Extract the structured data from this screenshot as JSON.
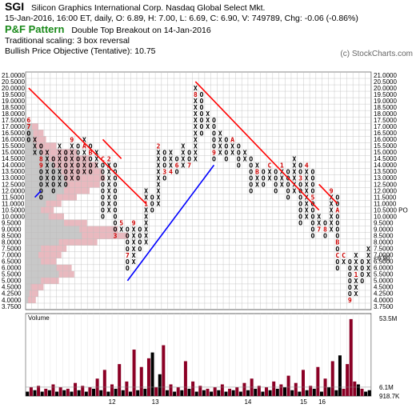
{
  "header": {
    "ticker": "SGI",
    "company": "Silicon Graphics International Corp.  Nasdaq Global Select Mkt.",
    "quote": "15-Jan-2016, 16:00 ET, daily, O: 6.89, H: 7.00, L: 6.69, C: 6.90, V: 749789, Chg: -0.06 (-0.86%)",
    "pf_title": "P&F Pattern",
    "pattern": "Double Top Breakout on 14-Jan-2016",
    "scaling": "Traditional scaling: 3 box reversal",
    "objective": "Bullish Price Objective (Tentative): 10.75",
    "copyright": "(c) StockCharts.com"
  },
  "colors": {
    "x_mark": "#000000",
    "o_mark": "#000000",
    "month_mark": "#cc0000",
    "trend_bear": "#ff0000",
    "trend_bull": "#0000ff",
    "price_label": "#cc0000",
    "objective_label": "#009900",
    "volume_up": "#000000",
    "volume_down": "#8b0025",
    "vbp": "#e9b9bf",
    "vbp_gray": "#c8c8c8"
  },
  "chart_data": {
    "type": "point-and-figure",
    "box_size": 0.5,
    "reversal": 3,
    "price_levels": [
      "21.0000",
      "20.5000",
      "20.0000",
      "19.5000",
      "19.0000",
      "18.5000",
      "18.0000",
      "17.5000",
      "17.0000",
      "16.5000",
      "16.0000",
      "15.5000",
      "15.0000",
      "14.5000",
      "14.0000",
      "13.5000",
      "13.0000",
      "12.5000",
      "12.0000",
      "11.5000",
      "11.0000",
      "10.5000",
      "10.0000",
      "9.5000",
      "9.0000",
      "8.5000",
      "8.0000",
      "7.5000",
      "7.0000",
      "6.5000",
      "6.0000",
      "5.5000",
      "5.0000",
      "4.5000",
      "4.2500",
      "4.0000",
      "3.7500"
    ],
    "right_price_levels": [
      "21.0000",
      "20.5000",
      "20.0000",
      "19.5000",
      "19.0000",
      "18.5000",
      "18.0000",
      "17.5000",
      "17.0000",
      "16.5000",
      "16.0000",
      "15.5000",
      "15.0000",
      "14.5000",
      "14.0000",
      "13.5000",
      "13.0000",
      "12.5000",
      "12.0000",
      "11.5000",
      "11.0000",
      "10.5000",
      "10.0000",
      "9.5000",
      "9.0000",
      "8.5000",
      "8.0000",
      "7.5000",
      "7.0000",
      "6.5000",
      "6.0000",
      "5.5000",
      "5.0000",
      "4.5000",
      "4.2500",
      "4.0000",
      "3.7500"
    ],
    "current_price_label": "6.5000",
    "current_price_right": "<6.90",
    "objective_price_left": "10.5000",
    "objective_price_right": "10.5000 PO",
    "columns": [
      {
        "type": "O",
        "from": 17.5,
        "to": 16.0,
        "months": {
          "17.5": "6",
          "17.0": "7"
        }
      },
      {
        "type": "X",
        "from": 15.0,
        "to": 16.0,
        "months": {}
      },
      {
        "type": "O",
        "from": 15.5,
        "to": 11.5,
        "months": {
          "14.5": "8",
          "14.0": "9"
        }
      },
      {
        "type": "X",
        "from": 12.5,
        "to": 15.0,
        "months": {}
      },
      {
        "type": "O",
        "from": 14.5,
        "to": 12.0,
        "months": {}
      },
      {
        "type": "X",
        "from": 12.5,
        "to": 15.5,
        "months": {}
      },
      {
        "type": "O",
        "from": 15.0,
        "to": 12.5,
        "months": {}
      },
      {
        "type": "X",
        "from": 13.0,
        "to": 16.0,
        "months": {
          "16.0": "9"
        }
      },
      {
        "type": "O",
        "from": 15.5,
        "to": 13.0,
        "months": {}
      },
      {
        "type": "X",
        "from": 13.5,
        "to": 16.0,
        "months": {
          "15.5": "A"
        }
      },
      {
        "type": "O",
        "from": 15.5,
        "to": 13.5,
        "months": {
          "15.0": "B"
        }
      },
      {
        "type": "X",
        "from": 14.0,
        "to": 15.0,
        "months": {}
      },
      {
        "type": "O",
        "from": 14.5,
        "to": 10.0,
        "months": {
          "14.5": "C"
        }
      },
      {
        "type": "X",
        "from": 10.5,
        "to": 14.5,
        "months": {
          "14.5": "2"
        }
      },
      {
        "type": "O",
        "from": 14.0,
        "to": 8.5,
        "months": {
          "8.5": "3"
        }
      },
      {
        "type": "X",
        "from": 9.0,
        "to": 9.5,
        "months": {
          "9.5": "5"
        }
      },
      {
        "type": "O",
        "from": 9.0,
        "to": 6.0,
        "months": {
          "7.0": "7"
        }
      },
      {
        "type": "X",
        "from": 6.5,
        "to": 9.5,
        "months": {
          "9.5": "9"
        }
      },
      {
        "type": "O",
        "from": 9.0,
        "to": 7.5,
        "months": {}
      },
      {
        "type": "X",
        "from": 8.0,
        "to": 12.0,
        "months": {
          "11.0": "1"
        }
      },
      {
        "type": "O",
        "from": 11.5,
        "to": 10.5,
        "months": {}
      },
      {
        "type": "X",
        "from": 11.0,
        "to": 15.5,
        "months": {
          "15.5": "2"
        }
      },
      {
        "type": "O",
        "from": 15.0,
        "to": 13.0,
        "months": {
          "13.5": "3"
        }
      },
      {
        "type": "X",
        "from": 13.5,
        "to": 15.0,
        "months": {
          "13.5": "4"
        }
      },
      {
        "type": "O",
        "from": 14.5,
        "to": 13.5,
        "months": {
          "14.0": "6"
        }
      },
      {
        "type": "X",
        "from": 14.0,
        "to": 15.5,
        "months": {}
      },
      {
        "type": "O",
        "from": 15.0,
        "to": 14.0,
        "months": {
          "14.0": "7"
        }
      },
      {
        "type": "X",
        "from": 14.5,
        "to": 20.0,
        "months": {
          "19.5": "8"
        }
      },
      {
        "type": "O",
        "from": 19.5,
        "to": 16.5,
        "months": {}
      },
      {
        "type": "X",
        "from": 17.0,
        "to": 18.0,
        "months": {}
      },
      {
        "type": "O",
        "from": 17.5,
        "to": 14.5,
        "months": {
          "15.0": "9"
        }
      },
      {
        "type": "X",
        "from": 15.0,
        "to": 16.5,
        "months": {}
      },
      {
        "type": "O",
        "from": 16.0,
        "to": 14.5,
        "months": {}
      },
      {
        "type": "X",
        "from": 15.0,
        "to": 16.0,
        "months": {
          "16.0": "A"
        }
      },
      {
        "type": "O",
        "from": 15.5,
        "to": 14.0,
        "months": {}
      },
      {
        "type": "X",
        "from": 14.5,
        "to": 15.0,
        "months": {}
      },
      {
        "type": "O",
        "from": 14.5,
        "to": 12.0,
        "months": {}
      },
      {
        "type": "X",
        "from": 12.5,
        "to": 14.0,
        "months": {
          "13.5": "B"
        }
      },
      {
        "type": "O",
        "from": 13.5,
        "to": 12.5,
        "months": {}
      },
      {
        "type": "X",
        "from": 13.0,
        "to": 14.0,
        "months": {
          "14.0": "C"
        }
      },
      {
        "type": "O",
        "from": 13.5,
        "to": 12.0,
        "months": {}
      },
      {
        "type": "X",
        "from": 12.5,
        "to": 14.0,
        "months": {
          "14.0": "1"
        }
      },
      {
        "type": "O",
        "from": 13.5,
        "to": 11.5,
        "months": {}
      },
      {
        "type": "X",
        "from": 12.0,
        "to": 14.5,
        "months": {}
      },
      {
        "type": "O",
        "from": 14.0,
        "to": 9.5,
        "months": {
          "13.0": "3"
        }
      },
      {
        "type": "X",
        "from": 10.0,
        "to": 14.0,
        "months": {
          "14.0": "4"
        }
      },
      {
        "type": "O",
        "from": 13.5,
        "to": 8.5,
        "months": {
          "11.5": "5"
        }
      },
      {
        "type": "X",
        "from": 9.0,
        "to": 10.0,
        "months": {
          "9.0": "7"
        }
      },
      {
        "type": "O",
        "from": 9.5,
        "to": 8.5,
        "months": {
          "9.0": "8"
        }
      },
      {
        "type": "X",
        "from": 9.0,
        "to": 12.0,
        "months": {
          "12.0": "9"
        }
      },
      {
        "type": "O",
        "from": 11.5,
        "to": 6.0,
        "months": {
          "10.5": "A",
          "8.0": "B",
          "7.0": "C"
        }
      },
      {
        "type": "X",
        "from": 6.5,
        "to": 7.0,
        "months": {
          "7.0": "C"
        }
      },
      {
        "type": "O",
        "from": 6.5,
        "to": 4.0,
        "months": {
          "4.0": "9"
        }
      },
      {
        "type": "X",
        "from": 4.25,
        "to": 7.0,
        "months": {
          "5.5": "1"
        }
      },
      {
        "type": "O",
        "from": 6.5,
        "to": 5.0,
        "months": {}
      },
      {
        "type": "X",
        "from": 5.5,
        "to": 7.5,
        "months": {}
      }
    ],
    "trendlines": [
      {
        "kind": "bearish",
        "from": [
          0,
          20.0
        ],
        "to": [
          19,
          11.0
        ]
      },
      {
        "kind": "bullish",
        "from": [
          1,
          11.5
        ],
        "to": [
          2,
          12.0
        ]
      },
      {
        "kind": "bearish",
        "from": [
          12,
          16.0
        ],
        "to": [
          15,
          14.5
        ]
      },
      {
        "kind": "bullish",
        "from": [
          16,
          5.0
        ],
        "to": [
          30,
          14.0
        ]
      },
      {
        "kind": "bearish",
        "from": [
          27,
          20.5
        ],
        "to": [
          47,
          10.5
        ]
      },
      {
        "kind": "bearish",
        "from": [
          47,
          12.5
        ],
        "to": [
          50,
          11.0
        ]
      }
    ],
    "volume_by_price": [
      {
        "price": 17.0,
        "width": 0.1,
        "gray": 0.05
      },
      {
        "price": 16.5,
        "width": 0.14,
        "gray": 0.06
      },
      {
        "price": 16.0,
        "width": 0.16,
        "gray": 0.06
      },
      {
        "price": 15.5,
        "width": 0.24,
        "gray": 0.08
      },
      {
        "price": 15.0,
        "width": 0.4,
        "gray": 0.12
      },
      {
        "price": 14.5,
        "width": 0.5,
        "gray": 0.18
      },
      {
        "price": 14.0,
        "width": 0.56,
        "gray": 0.22
      },
      {
        "price": 13.5,
        "width": 0.6,
        "gray": 0.28
      },
      {
        "price": 13.0,
        "width": 0.62,
        "gray": 0.3
      },
      {
        "price": 12.5,
        "width": 0.58,
        "gray": 0.32
      },
      {
        "price": 12.0,
        "width": 0.5,
        "gray": 0.3
      },
      {
        "price": 11.5,
        "width": 0.4,
        "gray": 0.24
      },
      {
        "price": 11.0,
        "width": 0.28,
        "gray": 0.16
      },
      {
        "price": 10.5,
        "width": 0.22,
        "gray": 0.12
      },
      {
        "price": 10.0,
        "width": 0.3,
        "gray": 0.18
      },
      {
        "price": 9.5,
        "width": 0.48,
        "gray": 0.3
      },
      {
        "price": 9.0,
        "width": 0.72,
        "gray": 0.42
      },
      {
        "price": 8.5,
        "width": 0.8,
        "gray": 0.44
      },
      {
        "price": 8.0,
        "width": 0.56,
        "gray": 0.26
      },
      {
        "price": 7.5,
        "width": 0.32,
        "gray": 0.12
      },
      {
        "price": 7.0,
        "width": 0.28,
        "gray": 0.1
      },
      {
        "price": 6.5,
        "width": 0.24,
        "gray": 0.12
      },
      {
        "price": 6.0,
        "width": 0.36,
        "gray": 0.24
      },
      {
        "price": 5.5,
        "width": 0.38,
        "gray": 0.26
      },
      {
        "price": 5.0,
        "width": 0.26,
        "gray": 0.12
      },
      {
        "price": 4.5,
        "width": 0.14,
        "gray": 0.04
      },
      {
        "price": 4.25,
        "width": 0.1,
        "gray": 0.03
      },
      {
        "price": 4.0,
        "width": 0.08,
        "gray": 0.02
      }
    ],
    "volume": {
      "label": "Volume",
      "scale_labels": [
        "53.5M",
        "6.1M",
        "918.7K"
      ],
      "max": 53.5,
      "ref_level": 6.1,
      "bars": [
        [
          3,
          0
        ],
        [
          6,
          1
        ],
        [
          4,
          0
        ],
        [
          7,
          1
        ],
        [
          3,
          0
        ],
        [
          5,
          1
        ],
        [
          4,
          0
        ],
        [
          8,
          1
        ],
        [
          3,
          0
        ],
        [
          6,
          1
        ],
        [
          4,
          0
        ],
        [
          5,
          1
        ],
        [
          3,
          0
        ],
        [
          9,
          1
        ],
        [
          4,
          0
        ],
        [
          7,
          1
        ],
        [
          3,
          0
        ],
        [
          6,
          1
        ],
        [
          5,
          0
        ],
        [
          12,
          1
        ],
        [
          4,
          0
        ],
        [
          18,
          1
        ],
        [
          3,
          0
        ],
        [
          8,
          1
        ],
        [
          5,
          0
        ],
        [
          22,
          1
        ],
        [
          4,
          0
        ],
        [
          10,
          1
        ],
        [
          3,
          0
        ],
        [
          32,
          1
        ],
        [
          4,
          0
        ],
        [
          20,
          1
        ],
        [
          5,
          0
        ],
        [
          26,
          1
        ],
        [
          30,
          0
        ],
        [
          6,
          1
        ],
        [
          15,
          0
        ],
        [
          35,
          1
        ],
        [
          4,
          0
        ],
        [
          8,
          1
        ],
        [
          3,
          0
        ],
        [
          6,
          1
        ],
        [
          4,
          0
        ],
        [
          24,
          1
        ],
        [
          5,
          0
        ],
        [
          10,
          1
        ],
        [
          3,
          0
        ],
        [
          7,
          1
        ],
        [
          4,
          0
        ],
        [
          5,
          1
        ],
        [
          3,
          0
        ],
        [
          6,
          1
        ],
        [
          4,
          0
        ],
        [
          8,
          1
        ],
        [
          3,
          0
        ],
        [
          5,
          1
        ],
        [
          4,
          0
        ],
        [
          6,
          1
        ],
        [
          3,
          0
        ],
        [
          9,
          1
        ],
        [
          4,
          0
        ],
        [
          12,
          1
        ],
        [
          5,
          0
        ],
        [
          7,
          1
        ],
        [
          3,
          0
        ],
        [
          6,
          1
        ],
        [
          4,
          0
        ],
        [
          10,
          1
        ],
        [
          5,
          0
        ],
        [
          8,
          1
        ],
        [
          6,
          0
        ],
        [
          14,
          1
        ],
        [
          4,
          0
        ],
        [
          9,
          1
        ],
        [
          3,
          0
        ],
        [
          18,
          1
        ],
        [
          4,
          0
        ],
        [
          7,
          1
        ],
        [
          5,
          0
        ],
        [
          20,
          1
        ],
        [
          3,
          0
        ],
        [
          12,
          1
        ],
        [
          6,
          0
        ],
        [
          24,
          1
        ],
        [
          4,
          0
        ],
        [
          28,
          0
        ],
        [
          5,
          1
        ],
        [
          22,
          1
        ],
        [
          53,
          1
        ],
        [
          10,
          1
        ],
        [
          8,
          0
        ],
        [
          5,
          1
        ],
        [
          3,
          0
        ],
        [
          4,
          0
        ]
      ]
    },
    "x_axis_labels": [
      {
        "label": "12",
        "col": 13.5
      },
      {
        "label": "13",
        "col": 20.5
      },
      {
        "label": "14",
        "col": 35.5
      },
      {
        "label": "15",
        "col": 44.5
      },
      {
        "label": "16",
        "col": 47.5
      }
    ]
  }
}
